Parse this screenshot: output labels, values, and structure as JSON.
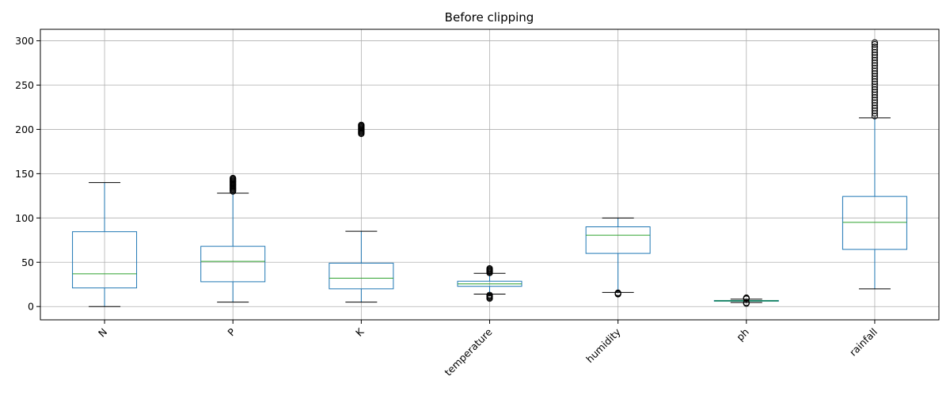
{
  "chart_data": {
    "type": "box",
    "title": "Before clipping",
    "xlabel": "",
    "ylabel": "",
    "categories": [
      "N",
      "P",
      "K",
      "temperature",
      "humidity",
      "ph",
      "rainfall"
    ],
    "ylim": [
      -15,
      313
    ],
    "yticks": [
      0,
      50,
      100,
      150,
      200,
      250,
      300
    ],
    "grid": true,
    "colors": {
      "box": "#1f77b4",
      "median": "#2ca02c",
      "whisker_cap": "#000000",
      "grid": "#b0b0b0"
    },
    "boxes": [
      {
        "category": "N",
        "whisker_low": 0,
        "q1": 21,
        "median": 37,
        "q3": 84.5,
        "whisker_high": 140,
        "outliers": []
      },
      {
        "category": "P",
        "whisker_low": 5,
        "q1": 28,
        "median": 51,
        "q3": 68,
        "whisker_high": 128,
        "outliers": [
          130,
          131,
          132,
          133,
          134,
          135,
          136,
          137,
          138,
          139,
          140,
          141,
          142,
          143,
          144,
          145
        ]
      },
      {
        "category": "K",
        "whisker_low": 5,
        "q1": 20,
        "median": 32,
        "q3": 49,
        "whisker_high": 85,
        "outliers": [
          195,
          196,
          197,
          198,
          199,
          200,
          201,
          202,
          203,
          204,
          205
        ]
      },
      {
        "category": "temperature",
        "whisker_low": 14,
        "q1": 22.8,
        "median": 25.6,
        "q3": 28.6,
        "whisker_high": 37.5,
        "outliers": [
          9,
          10,
          11,
          12,
          13,
          38,
          39,
          40,
          41,
          42,
          43
        ]
      },
      {
        "category": "humidity",
        "whisker_low": 16,
        "q1": 60,
        "median": 80.5,
        "q3": 90,
        "whisker_high": 100,
        "outliers": [
          14,
          14.5,
          15,
          15.5
        ]
      },
      {
        "category": "ph",
        "whisker_low": 4.5,
        "q1": 5.97,
        "median": 6.4,
        "q3": 6.9,
        "whisker_high": 8.4,
        "outliers": [
          3.5,
          4.0,
          4.3,
          8.7,
          9.2,
          9.9
        ]
      },
      {
        "category": "rainfall",
        "whisker_low": 20,
        "q1": 64.5,
        "median": 95,
        "q3": 124.3,
        "whisker_high": 213,
        "outliers": [
          215,
          218,
          221,
          224,
          227,
          230,
          233,
          236,
          239,
          242,
          245,
          248,
          251,
          254,
          257,
          260,
          263,
          266,
          269,
          272,
          275,
          278,
          281,
          284,
          287,
          290,
          293,
          296,
          298
        ]
      }
    ]
  }
}
